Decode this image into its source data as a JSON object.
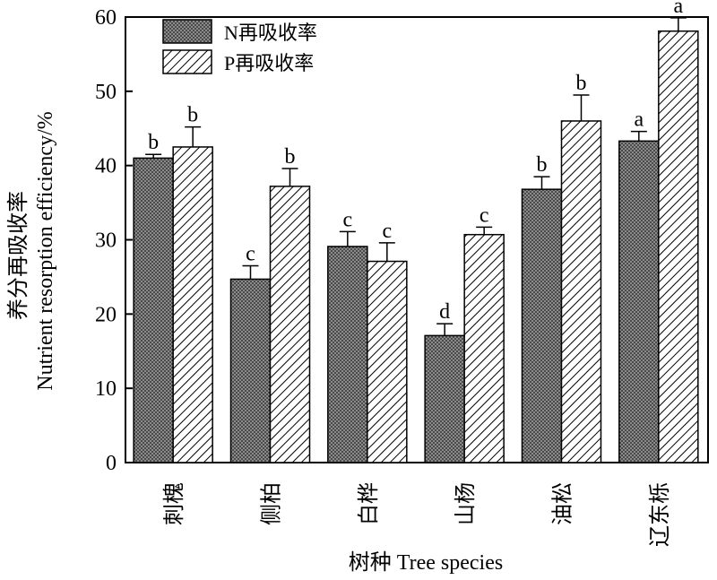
{
  "chart_data": {
    "type": "bar",
    "categories": [
      "刺槐",
      "侧柏",
      "白桦",
      "山杨",
      "油松",
      "辽东栎"
    ],
    "xlabel": "树种 Tree species",
    "ylabel_cn": "养分再吸收率",
    "ylabel_en": "Nutrient resorption efficiency/%",
    "ylim": [
      0,
      60
    ],
    "yticks": [
      0,
      10,
      20,
      30,
      40,
      50,
      60
    ],
    "grid": false,
    "legend_position": "top-left",
    "series": [
      {
        "name": "N再吸收率",
        "fill": "crosshatch-dark",
        "values": [
          41.0,
          24.7,
          29.1,
          17.1,
          36.8,
          43.3
        ],
        "errors": [
          0.5,
          1.8,
          2.0,
          1.6,
          1.7,
          1.3
        ],
        "labels": [
          "b",
          "c",
          "c",
          "d",
          "b",
          "a"
        ]
      },
      {
        "name": "P再吸收率",
        "fill": "diagonal-stripes",
        "values": [
          42.5,
          37.2,
          27.1,
          30.7,
          46.0,
          58.1
        ],
        "errors": [
          2.7,
          2.4,
          2.5,
          1.0,
          3.5,
          1.8
        ],
        "labels": [
          "b",
          "b",
          "c",
          "c",
          "b",
          "a"
        ]
      }
    ]
  }
}
